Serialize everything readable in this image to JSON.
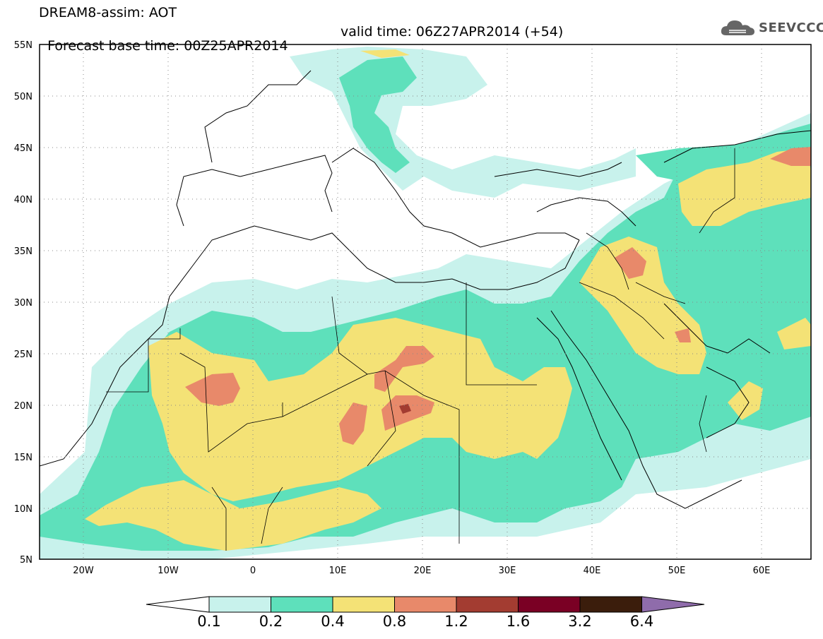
{
  "header": {
    "title": "DREAM8-assim: AOT",
    "base_time": "Forecast base time: 00Z25APR2014",
    "valid_time": "valid time: 06Z27APR2014 (+54)"
  },
  "logo": {
    "text": "SEEVCCC",
    "icon": "cloud-logo-icon"
  },
  "axes": {
    "lat_labels": [
      "55N",
      "50N",
      "45N",
      "40N",
      "35N",
      "30N",
      "25N",
      "20N",
      "15N",
      "10N",
      "5N"
    ],
    "lon_labels": [
      "20W",
      "10W",
      "0",
      "10E",
      "20E",
      "30E",
      "40E",
      "50E",
      "60E"
    ]
  },
  "colorbar": {
    "labels": [
      "0.1",
      "0.2",
      "0.4",
      "0.8",
      "1.2",
      "1.6",
      "3.2",
      "6.4"
    ],
    "colors": [
      "#ffffff",
      "#c8f2ec",
      "#5ee0bb",
      "#f4e276",
      "#e8896a",
      "#a33c31",
      "#7a0024",
      "#3b1d0c",
      "#8f6cab"
    ]
  }
}
